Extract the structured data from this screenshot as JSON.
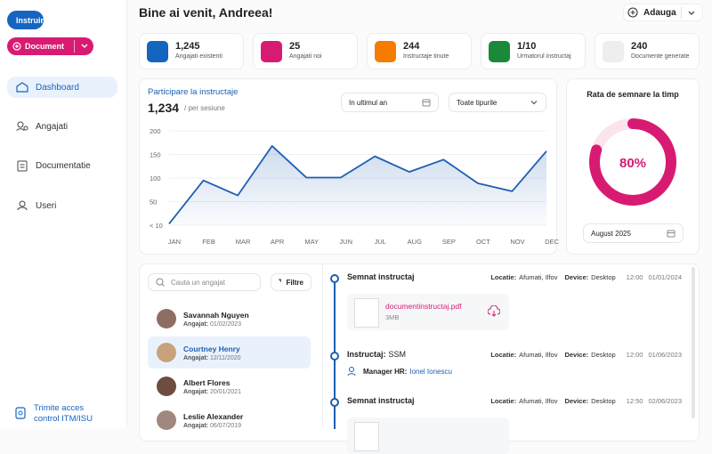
{
  "sidebar": {
    "buttons": [
      "Instruire",
      "Document"
    ],
    "nav": [
      "Dashboard",
      "Angajati",
      "Documentatie",
      "Useri"
    ],
    "footer_link": "Trimite acces control ITM/ISU"
  },
  "header": {
    "title": "Bine ai venit, Andreea!",
    "add_button": "Adauga"
  },
  "stats": [
    {
      "value": "1,245",
      "label": "Angajati existenti"
    },
    {
      "value": "25",
      "label": "Angajati noi"
    },
    {
      "value": "244",
      "label": "Instructaje tinute"
    },
    {
      "value": "1/10",
      "label": "Urmatorul instructaj"
    },
    {
      "value": "240",
      "label": "Documente generate"
    }
  ],
  "participation": {
    "total": "1,234",
    "unit": "/ per sesiune",
    "filters": [
      "In ultimul an",
      "Toate tipurile"
    ]
  },
  "chart_data": [
    {
      "type": "line",
      "title": "Participare la instructaje",
      "categories": [
        "JAN",
        "FEB",
        "MAR",
        "APR",
        "MAY",
        "JUN",
        "JUL",
        "AUG",
        "SEP",
        "OCT",
        "NOV",
        "DEC"
      ],
      "series": [
        {
          "name": "Participare",
          "color": "#1e5fb0",
          "values": [
            3,
            95,
            63,
            168,
            101,
            101,
            146,
            113,
            139,
            89,
            72,
            157
          ]
        }
      ],
      "ylim": [
        0,
        200
      ],
      "yticks": [
        {
          "value": 0,
          "label": "< 10"
        },
        50,
        100,
        150,
        200
      ],
      "grid": true
    },
    {
      "type": "gauge",
      "title": "Rata de semnare la timp",
      "values": [
        80
      ],
      "value_labels": [
        "80%"
      ],
      "ylim": [
        0,
        100
      ],
      "color": "#d81b72"
    }
  ],
  "rate_filter": "August 2025",
  "employees": {
    "search": "Cauta un angajat",
    "filter": "Filtre",
    "list": [
      {
        "name": "Savannah Nguyen",
        "role": "Angajat:",
        "date": "01/02/2023"
      },
      {
        "name": "Courtney Henry",
        "role": "Angajat:",
        "date": "12/11/2020"
      },
      {
        "name": "Albert Flores",
        "role": "Angajat:",
        "date": "20/01/2021"
      },
      {
        "name": "Leslie Alexander",
        "role": "Angajat:",
        "date": "06/07/2019"
      }
    ]
  },
  "timeline": [
    {
      "title": "Semnat instructaj",
      "location_label": "Locatie:",
      "location": "Afumati, Ilfov",
      "device_label": "Device:",
      "device": "Desktop",
      "time": "12:00",
      "date": "01/01/2024",
      "file": {
        "name": "documentinstructaj.pdf",
        "size": "3MB"
      }
    },
    {
      "title": "Instructaj:",
      "title_detail": "SSM",
      "location_label": "Locatie:",
      "location": "Afumati, Ilfov",
      "device_label": "Device:",
      "device": "Desktop",
      "time": "12:00",
      "date": "01/06/2023",
      "manager_label": "Manager HR:",
      "manager": "Ionel Ionescu"
    },
    {
      "title": "Semnat instructaj",
      "location_label": "Locatie:",
      "location": "Afumati, Ilfov",
      "device_label": "Device:",
      "device": "Desktop",
      "time": "12:50",
      "date": "02/06/2023"
    }
  ]
}
